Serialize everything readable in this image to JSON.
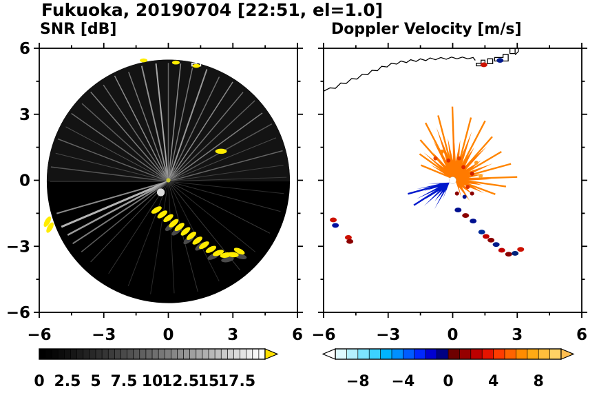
{
  "title": "Fukuoka, 20190704 [22:51, el=1.0]",
  "panels": [
    {
      "title": "SNR [dB]",
      "xtick_labels": [
        "−6",
        "−3",
        "0",
        "3",
        "6"
      ],
      "xtick_values": [
        -6,
        -3,
        0,
        3,
        6
      ],
      "ytick_labels": [
        "6",
        "3",
        "0",
        "−3",
        "−6"
      ],
      "ytick_values": [
        6,
        3,
        0,
        -3,
        -6
      ]
    },
    {
      "title": "Doppler Velocity [m/s]",
      "xtick_labels": [
        "−6",
        "−3",
        "0",
        "3",
        "6"
      ],
      "xtick_values": [
        -6,
        -3,
        0,
        3,
        6
      ]
    }
  ],
  "coastline": {
    "main": [
      [
        -6,
        4.05
      ],
      [
        -5.7,
        4.2
      ],
      [
        -5.45,
        4.18
      ],
      [
        -5.2,
        4.42
      ],
      [
        -4.95,
        4.4
      ],
      [
        -4.7,
        4.62
      ],
      [
        -4.45,
        4.6
      ],
      [
        -4.2,
        4.82
      ],
      [
        -3.95,
        4.8
      ],
      [
        -3.75,
        5.0
      ],
      [
        -3.5,
        4.98
      ],
      [
        -3.3,
        5.18
      ],
      [
        -3.05,
        5.15
      ],
      [
        -2.85,
        5.32
      ],
      [
        -2.6,
        5.28
      ],
      [
        -2.4,
        5.42
      ],
      [
        -2.15,
        5.35
      ],
      [
        -1.95,
        5.48
      ],
      [
        -1.7,
        5.4
      ],
      [
        -1.5,
        5.52
      ],
      [
        -1.25,
        5.44
      ],
      [
        -1.05,
        5.56
      ],
      [
        -0.8,
        5.48
      ],
      [
        -0.55,
        5.58
      ],
      [
        -0.3,
        5.5
      ],
      [
        -0.05,
        5.6
      ],
      [
        0.2,
        5.52
      ],
      [
        0.45,
        5.6
      ],
      [
        0.7,
        5.52
      ],
      [
        0.95,
        5.58
      ],
      [
        1.05,
        5.45
      ]
    ],
    "structures": [
      [
        [
          1.1,
          5.2
        ],
        [
          1.5,
          5.2
        ],
        [
          1.5,
          5.46
        ],
        [
          1.32,
          5.46
        ],
        [
          1.32,
          5.32
        ],
        [
          1.1,
          5.32
        ]
      ],
      [
        [
          1.62,
          5.3
        ],
        [
          1.86,
          5.3
        ],
        [
          1.86,
          5.52
        ],
        [
          1.62,
          5.52
        ]
      ],
      [
        [
          1.95,
          5.42
        ],
        [
          2.58,
          5.42
        ],
        [
          2.58,
          5.72
        ],
        [
          2.34,
          5.72
        ],
        [
          2.34,
          5.58
        ],
        [
          1.95,
          5.58
        ]
      ],
      [
        [
          2.66,
          5.76
        ],
        [
          2.9,
          5.76
        ],
        [
          2.9,
          6.0
        ],
        [
          2.66,
          6.0
        ]
      ]
    ],
    "tail": [
      [
        2.9,
        5.7
      ],
      [
        3.05,
        5.85
      ],
      [
        3.05,
        6.0
      ]
    ]
  },
  "chart_data": [
    {
      "type": "heatmap",
      "title": "SNR [dB]",
      "units": "dB",
      "xlim": [
        -6,
        6
      ],
      "ylim": [
        -6,
        6
      ],
      "xticks": [
        -6,
        -3,
        0,
        3,
        6
      ],
      "yticks": [
        -6,
        -3,
        0,
        3,
        6
      ],
      "scan_disk": {
        "center": [
          0,
          -0.05
        ],
        "radius": 5.65,
        "color": "#000000"
      },
      "upper_haze_color": "#131313",
      "streaks": [
        [
          96,
          5.5,
          2,
          "#a8a8a8"
        ],
        [
          90,
          5.5,
          1.5,
          "#6a6a6a"
        ],
        [
          84,
          5.5,
          1.5,
          "#8e8e8e"
        ],
        [
          78,
          5.4,
          1.5,
          "#787878"
        ],
        [
          71,
          5.5,
          2,
          "#989898"
        ],
        [
          64,
          5.4,
          1.5,
          "#6f6f6f"
        ],
        [
          57,
          5.5,
          1.5,
          "#8a8a8a"
        ],
        [
          50,
          5.4,
          1.5,
          "#747474"
        ],
        [
          43,
          5.5,
          1.5,
          "#606060"
        ],
        [
          36,
          5.4,
          1.5,
          "#7e7e7e"
        ],
        [
          29,
          5.5,
          1.5,
          "#585858"
        ],
        [
          22,
          5.4,
          1,
          "#4c4c4c"
        ],
        [
          15,
          5.5,
          1.5,
          "#666666"
        ],
        [
          8,
          5.4,
          1,
          "#424242"
        ],
        [
          2,
          5.5,
          1,
          "#3a3a3a"
        ],
        [
          103,
          5.5,
          2,
          "#909090"
        ],
        [
          110,
          5.4,
          1.5,
          "#7a7a7a"
        ],
        [
          117,
          5.5,
          1.5,
          "#8c8c8c"
        ],
        [
          124,
          5.4,
          1.5,
          "#6e6e6e"
        ],
        [
          131,
          5.5,
          1.5,
          "#7c7c7c"
        ],
        [
          138,
          5.4,
          1.5,
          "#5e5e5e"
        ],
        [
          145,
          5.5,
          1.5,
          "#6b6b6b"
        ],
        [
          152,
          5.4,
          1,
          "#525252"
        ],
        [
          159,
          5.5,
          1.5,
          "#646464"
        ],
        [
          166,
          5.4,
          1,
          "#484848"
        ],
        [
          173,
          5.5,
          1.5,
          "#565656"
        ],
        [
          180,
          5.5,
          1,
          "#404040"
        ],
        [
          196,
          5.4,
          2,
          "#8a8a8a"
        ],
        [
          203,
          5.4,
          3,
          "#b4b4b4"
        ],
        [
          208,
          5.3,
          2.5,
          "#9c9c9c"
        ],
        [
          213,
          5.3,
          2,
          "#7a7a7a"
        ],
        [
          219,
          5.2,
          1.5,
          "#5a5a5a"
        ],
        [
          226,
          5.2,
          1,
          "#464646"
        ],
        [
          237,
          5.1,
          1,
          "#333333"
        ],
        [
          249,
          5.2,
          1,
          "#2e2e2e"
        ],
        [
          261,
          5.3,
          1,
          "#2a2a2a"
        ],
        [
          273,
          5.2,
          1,
          "#2e2e2e"
        ],
        [
          285,
          5.3,
          1,
          "#343434"
        ],
        [
          297,
          5.2,
          1,
          "#2c2c2c"
        ],
        [
          309,
          5.3,
          1,
          "#383838"
        ],
        [
          321,
          5.2,
          1,
          "#303030"
        ],
        [
          333,
          5.3,
          1,
          "#3a3a3a"
        ],
        [
          345,
          5.4,
          1,
          "#323232"
        ],
        [
          354,
          5.4,
          1,
          "#2e2e2e"
        ]
      ],
      "bright_patch": {
        "center": [
          -0.35,
          -0.55
        ],
        "r": 0.18,
        "color": "#dcdcdc"
      },
      "yellow_color": "#ffec00",
      "gray_color": "#4a4a4a",
      "yellow_patches": [
        [
          -0.55,
          -1.35,
          -30
        ],
        [
          -0.28,
          -1.55,
          -35
        ],
        [
          0.0,
          -1.72,
          -35
        ],
        [
          0.25,
          -1.95,
          -40
        ],
        [
          0.52,
          -2.12,
          -38
        ],
        [
          0.8,
          -2.32,
          -40
        ],
        [
          1.07,
          -2.52,
          -38
        ],
        [
          1.35,
          -2.74,
          -36
        ],
        [
          1.66,
          -2.95,
          -33
        ],
        [
          1.98,
          -3.14,
          -28
        ],
        [
          2.32,
          -3.3,
          -20
        ],
        [
          2.67,
          -3.4,
          -10
        ],
        [
          3.0,
          -3.38,
          5
        ],
        [
          3.3,
          -3.22,
          25
        ],
        [
          2.45,
          1.32,
          0
        ],
        [
          -5.62,
          -1.88,
          -60
        ],
        [
          -5.5,
          -2.15,
          -60
        ]
      ],
      "gray_patches": [
        [
          0.1,
          -2.1,
          -38
        ],
        [
          0.4,
          -2.3,
          -40
        ],
        [
          0.95,
          -2.7,
          -38
        ],
        [
          1.5,
          -3.0,
          -35
        ],
        [
          2.1,
          -3.45,
          -25
        ],
        [
          2.75,
          -3.6,
          -10
        ],
        [
          3.35,
          -3.45,
          15
        ]
      ],
      "top_patches": [
        [
          -1.15,
          5.45
        ],
        [
          0.35,
          5.35
        ],
        [
          1.3,
          5.2
        ]
      ],
      "center_dot": {
        "center": [
          0,
          0
        ],
        "r": 0.1,
        "color": "#c8c832"
      },
      "colorbar": {
        "vmin": 0,
        "vmax": 20,
        "cells": 36,
        "tick_labels": [
          "0",
          "2.5",
          "5",
          "7.5",
          "10",
          "12.5",
          "15",
          "17.5"
        ],
        "tick_values": [
          0,
          2.5,
          5,
          7.5,
          10,
          12.5,
          15,
          17.5
        ],
        "start_color": "#000000",
        "end_color": "#ffffff",
        "over_arrow_color": "#ffdf00"
      }
    },
    {
      "type": "heatmap",
      "title": "Doppler Velocity [m/s]",
      "units": "m/s",
      "xlim": [
        -6,
        6
      ],
      "ylim": [
        -6,
        6
      ],
      "xticks": [
        -6,
        -3,
        0,
        3,
        6
      ],
      "yticks": [
        -6,
        -3,
        0,
        3,
        6
      ],
      "pos_blob": {
        "center": [
          0.1,
          0.05
        ],
        "fill": "#ff7a00",
        "spikes": [
          [
            -70,
            0.9
          ],
          [
            -55,
            1.2
          ],
          [
            -40,
            1.1
          ],
          [
            -25,
            1.5
          ],
          [
            -12,
            1.3
          ],
          [
            0,
            1.7
          ],
          [
            10,
            1.4
          ],
          [
            22,
            1.9
          ],
          [
            35,
            1.5
          ],
          [
            45,
            2.1
          ],
          [
            58,
            1.7
          ],
          [
            70,
            2.3
          ],
          [
            82,
            1.8
          ],
          [
            92,
            2.8
          ],
          [
            100,
            1.9
          ],
          [
            110,
            2.5
          ],
          [
            120,
            2.0
          ],
          [
            130,
            1.6
          ],
          [
            140,
            1.9
          ],
          [
            150,
            1.3
          ],
          [
            160,
            1.0
          ]
        ]
      },
      "pos_ray_color": "#ff8400",
      "pos_rays": [
        [
          92,
          3.3
        ],
        [
          105,
          3.0
        ],
        [
          118,
          2.9
        ],
        [
          75,
          2.9
        ],
        [
          62,
          3.0
        ],
        [
          48,
          2.6
        ],
        [
          30,
          2.5
        ],
        [
          15,
          2.7
        ],
        [
          2,
          2.9
        ],
        [
          352,
          2.4
        ],
        [
          340,
          2.0
        ],
        [
          132,
          2.4
        ],
        [
          145,
          2.0
        ],
        [
          158,
          1.7
        ]
      ],
      "blob_speckles": [
        [
          0.5,
          0.6,
          "#e02800"
        ],
        [
          0.9,
          0.3,
          "#d02000"
        ],
        [
          0.3,
          1.0,
          "#e84400"
        ],
        [
          1.1,
          0.8,
          "#ff9d20"
        ],
        [
          1.3,
          0.2,
          "#ffa830"
        ],
        [
          0.7,
          -0.3,
          "#e03000"
        ],
        [
          0.2,
          -0.6,
          "#8b0000"
        ],
        [
          0.55,
          -0.75,
          "#001090"
        ],
        [
          0.9,
          -0.6,
          "#8b0000"
        ],
        [
          -0.2,
          0.9,
          "#e03000"
        ],
        [
          -0.5,
          1.3,
          "#ff8400"
        ],
        [
          -0.8,
          1.0,
          "#e84400"
        ]
      ],
      "neg_wedge": {
        "center": [
          -0.15,
          -0.1
        ],
        "fill": "#0018cc",
        "spikes": [
          [
            183,
            1.0
          ],
          [
            191,
            1.55
          ],
          [
            198,
            1.25
          ],
          [
            206,
            1.7
          ],
          [
            214,
            1.35
          ],
          [
            222,
            1.6
          ],
          [
            231,
            1.1
          ],
          [
            240,
            1.4
          ],
          [
            248,
            0.8
          ]
        ]
      },
      "neg_ray_color": "#0018cc",
      "neg_rays": [
        [
          195,
          2.0
        ],
        [
          212,
          1.95
        ]
      ],
      "patches": [
        [
          1.55,
          -2.55,
          "#c00000"
        ],
        [
          1.78,
          -2.72,
          "#8b0000"
        ],
        [
          2.02,
          -2.92,
          "#001a8b"
        ],
        [
          2.28,
          -3.18,
          "#c00000"
        ],
        [
          2.6,
          -3.36,
          "#8b0000"
        ],
        [
          2.9,
          -3.32,
          "#00227a"
        ],
        [
          3.16,
          -3.14,
          "#cc1100"
        ],
        [
          1.35,
          -2.35,
          "#002a99"
        ],
        [
          0.25,
          -1.35,
          "#001090"
        ],
        [
          0.6,
          -1.6,
          "#8b0000"
        ],
        [
          0.95,
          -1.85,
          "#001090"
        ],
        [
          -5.55,
          -1.8,
          "#cc1100"
        ],
        [
          -5.45,
          -2.05,
          "#0010a0"
        ],
        [
          -4.85,
          -2.6,
          "#cc1100"
        ],
        [
          -4.78,
          -2.78,
          "#8b0000"
        ],
        [
          1.45,
          5.25,
          "#cc1100"
        ],
        [
          2.2,
          5.45,
          "#001a8b"
        ]
      ],
      "center_dot": {
        "center": [
          0,
          0
        ],
        "r": 0.16,
        "color": "#ffffff"
      },
      "colorbar": {
        "vmin": -10,
        "vmax": 10,
        "tick_labels": [
          "−8",
          "−4",
          "0",
          "4",
          "8"
        ],
        "tick_values": [
          -8,
          -4,
          0,
          4,
          8
        ],
        "cell_colors": [
          "#defaff",
          "#b4f0ff",
          "#7ce4ff",
          "#3cd2ff",
          "#00b4ff",
          "#0090ff",
          "#005cff",
          "#0028ff",
          "#0000d2",
          "#000082",
          "#6e0000",
          "#960000",
          "#be0000",
          "#e61400",
          "#ff3c00",
          "#ff6400",
          "#ff8c00",
          "#ffaa14",
          "#ffbe3c",
          "#ffd264"
        ],
        "left_arrow_color": "#ffffff",
        "right_arrow_color": "#ffbe50"
      }
    }
  ]
}
